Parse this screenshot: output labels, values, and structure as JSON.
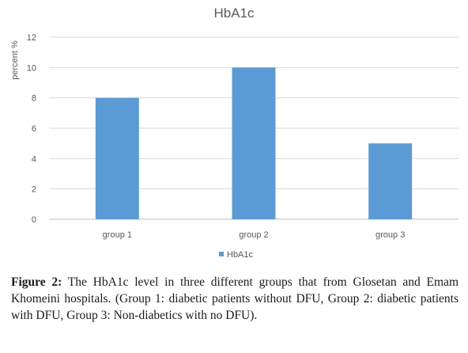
{
  "chart_data": {
    "type": "bar",
    "title": "HbA1c",
    "xlabel": "",
    "ylabel": "percent %",
    "categories": [
      "group 1",
      "group 2",
      "group 3"
    ],
    "series": [
      {
        "name": "HbA1c",
        "values": [
          8,
          10,
          5
        ],
        "color": "#5b9bd5"
      }
    ],
    "ylim": [
      0,
      12
    ],
    "yticks": [
      "0",
      "2",
      "4",
      "6",
      "8",
      "10",
      "12"
    ],
    "grid": true,
    "legend": "bottom"
  },
  "caption": {
    "label": "Figure 2:",
    "text": " The HbA1c level in three different groups that from Glosetan and Emam Khomeini hospitals. (Group 1: diabetic patients without DFU, Group 2: diabetic patients with DFU, Group 3: Non-diabetics with no DFU)."
  }
}
